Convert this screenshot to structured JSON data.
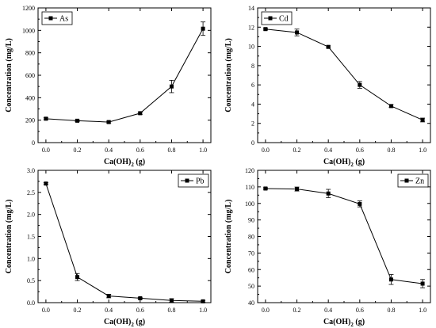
{
  "chart_data": [
    {
      "type": "line",
      "legend": "As",
      "legend_position": "top-left",
      "xlabel": "Ca(OH)",
      "xlabel_sub": "2",
      "xlabel_suffix": " (g)",
      "ylabel": "Concentration (mg/L)",
      "xlim": [
        -0.05,
        1.05
      ],
      "ylim": [
        0,
        1200
      ],
      "xticks": [
        "0.0",
        "0.2",
        "0.4",
        "0.6",
        "0.8",
        "1.0"
      ],
      "yticks": [
        "0",
        "200",
        "400",
        "600",
        "800",
        "1000",
        "1200"
      ],
      "x": [
        0.0,
        0.2,
        0.4,
        0.6,
        0.8,
        1.0
      ],
      "y": [
        213,
        195,
        183,
        262,
        500,
        1015
      ],
      "err": [
        8,
        8,
        8,
        10,
        55,
        60
      ]
    },
    {
      "type": "line",
      "legend": "Cd",
      "legend_position": "top-left",
      "xlabel": "Ca(OH)",
      "xlabel_sub": "2",
      "xlabel_suffix": " (g)",
      "ylabel": "Concentration (mg/L)",
      "xlim": [
        -0.05,
        1.05
      ],
      "ylim": [
        0,
        14
      ],
      "xticks": [
        "0.0",
        "0.2",
        "0.4",
        "0.6",
        "0.8",
        "1.0"
      ],
      "yticks": [
        "0",
        "2",
        "4",
        "6",
        "8",
        "10",
        "12",
        "14"
      ],
      "x": [
        0.0,
        0.2,
        0.4,
        0.6,
        0.8,
        1.0
      ],
      "y": [
        11.8,
        11.45,
        9.95,
        6.0,
        3.8,
        2.35
      ],
      "err": [
        0.1,
        0.35,
        0.1,
        0.35,
        0.15,
        0.2
      ]
    },
    {
      "type": "line",
      "legend": "Pb",
      "legend_position": "top-right",
      "xlabel": "Ca(OH)",
      "xlabel_sub": "2",
      "xlabel_suffix": " (g)",
      "ylabel": "Concentration (mg/L)",
      "xlim": [
        -0.05,
        1.05
      ],
      "ylim": [
        0,
        3.0
      ],
      "xticks": [
        "0.0",
        "0.2",
        "0.4",
        "0.6",
        "0.8",
        "1.0"
      ],
      "yticks": [
        "0.0",
        "0.5",
        "1.0",
        "1.5",
        "2.0",
        "2.5",
        "3.0"
      ],
      "x": [
        0.0,
        0.2,
        0.4,
        0.6,
        0.8,
        1.0
      ],
      "y": [
        2.7,
        0.58,
        0.15,
        0.1,
        0.05,
        0.03
      ],
      "err": [
        0.02,
        0.08,
        0.04,
        0.02,
        0.04,
        0.02
      ]
    },
    {
      "type": "line",
      "legend": "Zn",
      "legend_position": "top-right",
      "xlabel": "Ca(OH)",
      "xlabel_sub": "2",
      "xlabel_suffix": " (g)",
      "ylabel": "Concentration (mg/L)",
      "xlim": [
        -0.05,
        1.05
      ],
      "ylim": [
        40,
        120
      ],
      "xticks": [
        "0.0",
        "0.2",
        "0.4",
        "0.6",
        "0.8",
        "1.0"
      ],
      "yticks": [
        "40",
        "50",
        "60",
        "70",
        "80",
        "90",
        "100",
        "110",
        "120"
      ],
      "x": [
        0.0,
        0.2,
        0.4,
        0.6,
        0.8,
        1.0
      ],
      "y": [
        109,
        108.7,
        106,
        99.7,
        54,
        51.5
      ],
      "err": [
        0.5,
        1.2,
        2.5,
        1.8,
        3.0,
        2.5
      ]
    }
  ]
}
